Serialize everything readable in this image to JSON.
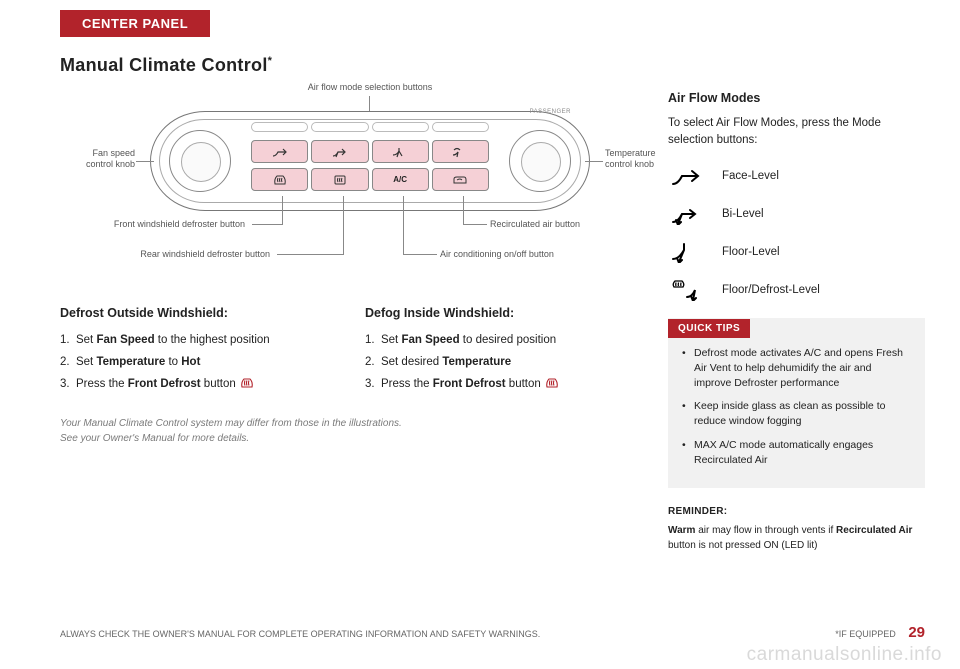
{
  "tab": "CENTER PANEL",
  "title": "Manual Climate Control",
  "title_sup": "*",
  "diagram": {
    "top_caption": "Air flow mode selection buttons",
    "left_knob": "Fan speed\ncontrol knob",
    "right_knob": "Temperature\ncontrol knob",
    "bl1": "Front windshield defroster button",
    "bl2": "Rear windshield defroster button",
    "br1": "Recirculated air button",
    "br2": "Air conditioning on/off button",
    "passenger": "PASSENGER",
    "panel_buttons_top": [
      "⬏",
      "⬏",
      "⬎",
      "⬎"
    ],
    "panel_buttons_bottom": [
      "⌔",
      "⌔",
      "A/C",
      "⟳"
    ],
    "highlight_color": "#f5d0d6",
    "border_color": "#888888"
  },
  "defrost": {
    "heading": "Defrost Outside Windshield:",
    "steps": [
      {
        "n": "1.",
        "pre": "Set ",
        "b": "Fan Speed",
        "post": " to the highest position"
      },
      {
        "n": "2.",
        "pre": "Set ",
        "b": "Temperature",
        "post": " to ",
        "b2": "Hot"
      },
      {
        "n": "3.",
        "pre": "Press the ",
        "b": "Front Defrost",
        "post": " button ",
        "icon": true
      }
    ]
  },
  "defog": {
    "heading": "Defog Inside Windshield:",
    "steps": [
      {
        "n": "1.",
        "pre": "Set ",
        "b": "Fan Speed",
        "post": " to desired position"
      },
      {
        "n": "2.",
        "pre": "Set desired ",
        "b": "Temperature",
        "post": ""
      },
      {
        "n": "3.",
        "pre": "Press the ",
        "b": "Front Defrost",
        "post": " button ",
        "icon": true
      }
    ]
  },
  "note_l1": "Your Manual Climate Control system may differ from those in the illustrations.",
  "note_l2": "See your Owner's Manual for more details.",
  "air_flow": {
    "heading": "Air Flow Modes",
    "intro": "To select Air Flow Modes, press the Mode selection buttons:",
    "modes": [
      {
        "label": "Face-Level",
        "svg": "face"
      },
      {
        "label": "Bi-Level",
        "svg": "bi"
      },
      {
        "label": "Floor-Level",
        "svg": "floor"
      },
      {
        "label": "Floor/Defrost-Level",
        "svg": "floordef"
      }
    ]
  },
  "tips": {
    "tab": "QUICK TIPS",
    "items": [
      "Defrost mode activates A/C and opens Fresh Air Vent to help dehumidify the air and improve Defroster performance",
      "Keep inside glass as clean as possible to reduce window fogging",
      "MAX A/C mode automatically engages Recirculated Air"
    ]
  },
  "reminder": {
    "heading": "REMINDER:",
    "b1": "Warm",
    "t1": " air may flow in through vents if ",
    "b2": "Recirculated Air",
    "t2": " button is not pressed ON (LED lit)"
  },
  "footer_left": "ALWAYS CHECK THE OWNER'S MANUAL FOR COMPLETE OPERATING INFORMATION AND SAFETY WARNINGS.",
  "footer_right": "*IF EQUIPPED",
  "page_num": "29",
  "watermark": "carmanualsonline.info",
  "colors": {
    "brand": "#b2232b",
    "grey_bg": "#f1f1f1"
  }
}
